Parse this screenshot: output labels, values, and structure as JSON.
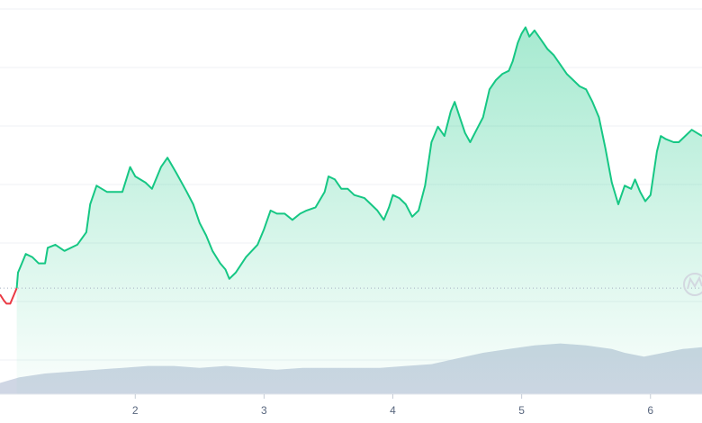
{
  "chart_data": {
    "type": "area",
    "title": "",
    "xlabel": "",
    "ylabel": "",
    "xlim": [
      0.95,
      6.4
    ],
    "x_ticks": [
      2,
      3,
      4,
      5,
      6
    ],
    "x_tick_labels": [
      "2",
      "3",
      "4",
      "5",
      "6"
    ],
    "y_ticks_shown": false,
    "ylim": [
      0,
      100
    ],
    "grid": true,
    "legend": "none",
    "baseline": 13,
    "series": [
      {
        "role": "price",
        "points": [
          [
            0.95,
            11
          ],
          [
            0.98,
            9
          ],
          [
            1.0,
            8
          ],
          [
            1.03,
            8
          ],
          [
            1.06,
            11
          ],
          [
            1.08,
            13
          ],
          [
            1.09,
            18
          ],
          [
            1.11,
            20
          ],
          [
            1.15,
            24
          ],
          [
            1.2,
            23
          ],
          [
            1.25,
            21
          ],
          [
            1.3,
            21
          ],
          [
            1.32,
            26
          ],
          [
            1.38,
            27
          ],
          [
            1.45,
            25
          ],
          [
            1.55,
            27
          ],
          [
            1.62,
            31
          ],
          [
            1.65,
            40
          ],
          [
            1.7,
            46
          ],
          [
            1.78,
            44
          ],
          [
            1.85,
            44
          ],
          [
            1.9,
            44
          ],
          [
            1.96,
            52
          ],
          [
            2.0,
            49
          ],
          [
            2.08,
            47
          ],
          [
            2.13,
            45
          ],
          [
            2.2,
            52
          ],
          [
            2.25,
            55
          ],
          [
            2.32,
            50
          ],
          [
            2.4,
            44
          ],
          [
            2.45,
            40
          ],
          [
            2.5,
            34
          ],
          [
            2.55,
            30
          ],
          [
            2.6,
            25
          ],
          [
            2.66,
            21
          ],
          [
            2.7,
            19
          ],
          [
            2.73,
            16
          ],
          [
            2.78,
            18
          ],
          [
            2.86,
            23
          ],
          [
            2.95,
            27
          ],
          [
            3.0,
            32
          ],
          [
            3.05,
            38
          ],
          [
            3.1,
            37
          ],
          [
            3.16,
            37
          ],
          [
            3.22,
            35
          ],
          [
            3.28,
            37
          ],
          [
            3.33,
            38
          ],
          [
            3.4,
            39
          ],
          [
            3.47,
            44
          ],
          [
            3.5,
            49
          ],
          [
            3.55,
            48
          ],
          [
            3.6,
            45
          ],
          [
            3.65,
            45
          ],
          [
            3.7,
            43
          ],
          [
            3.78,
            42
          ],
          [
            3.83,
            40
          ],
          [
            3.88,
            38
          ],
          [
            3.93,
            35
          ],
          [
            3.97,
            39
          ],
          [
            4.0,
            43
          ],
          [
            4.05,
            42
          ],
          [
            4.1,
            40
          ],
          [
            4.15,
            36
          ],
          [
            4.2,
            38
          ],
          [
            4.25,
            46
          ],
          [
            4.3,
            60
          ],
          [
            4.35,
            65
          ],
          [
            4.4,
            62
          ],
          [
            4.45,
            70
          ],
          [
            4.48,
            73
          ],
          [
            4.52,
            68
          ],
          [
            4.56,
            63
          ],
          [
            4.6,
            60
          ],
          [
            4.65,
            64
          ],
          [
            4.7,
            68
          ],
          [
            4.75,
            77
          ],
          [
            4.8,
            80
          ],
          [
            4.85,
            82
          ],
          [
            4.9,
            83
          ],
          [
            4.93,
            86
          ],
          [
            4.97,
            92
          ],
          [
            5.0,
            95
          ],
          [
            5.03,
            97
          ],
          [
            5.06,
            94
          ],
          [
            5.1,
            96
          ],
          [
            5.15,
            93
          ],
          [
            5.2,
            90
          ],
          [
            5.25,
            88
          ],
          [
            5.3,
            85
          ],
          [
            5.35,
            82
          ],
          [
            5.4,
            80
          ],
          [
            5.45,
            78
          ],
          [
            5.5,
            77
          ],
          [
            5.55,
            73
          ],
          [
            5.6,
            68
          ],
          [
            5.65,
            58
          ],
          [
            5.7,
            47
          ],
          [
            5.75,
            40
          ],
          [
            5.8,
            46
          ],
          [
            5.85,
            45
          ],
          [
            5.88,
            48
          ],
          [
            5.92,
            44
          ],
          [
            5.96,
            41
          ],
          [
            6.0,
            43
          ],
          [
            6.05,
            57
          ],
          [
            6.08,
            62
          ],
          [
            6.12,
            61
          ],
          [
            6.18,
            60
          ],
          [
            6.22,
            60
          ],
          [
            6.27,
            62
          ],
          [
            6.32,
            64
          ],
          [
            6.36,
            63
          ],
          [
            6.4,
            62
          ]
        ]
      },
      {
        "role": "volume",
        "points": [
          [
            0.95,
            3
          ],
          [
            1.1,
            4.5
          ],
          [
            1.3,
            5.5
          ],
          [
            1.5,
            6
          ],
          [
            1.7,
            6.5
          ],
          [
            1.9,
            7
          ],
          [
            2.1,
            7.5
          ],
          [
            2.3,
            7.5
          ],
          [
            2.5,
            7
          ],
          [
            2.7,
            7.5
          ],
          [
            2.9,
            7
          ],
          [
            3.1,
            6.5
          ],
          [
            3.3,
            7
          ],
          [
            3.5,
            7
          ],
          [
            3.7,
            7
          ],
          [
            3.9,
            7
          ],
          [
            4.1,
            7.5
          ],
          [
            4.3,
            8
          ],
          [
            4.5,
            9.5
          ],
          [
            4.7,
            11
          ],
          [
            4.9,
            12
          ],
          [
            5.1,
            13
          ],
          [
            5.3,
            13.5
          ],
          [
            5.5,
            13
          ],
          [
            5.7,
            12
          ],
          [
            5.8,
            11
          ],
          [
            5.95,
            10
          ],
          [
            6.1,
            11
          ],
          [
            6.25,
            12
          ],
          [
            6.4,
            12.5
          ]
        ]
      }
    ],
    "colors": {
      "up": "#16c784",
      "down": "#ea3943",
      "volume": "#cfd6e4",
      "grid": "#eff2f5",
      "baseline": "#a5b0c0"
    }
  }
}
